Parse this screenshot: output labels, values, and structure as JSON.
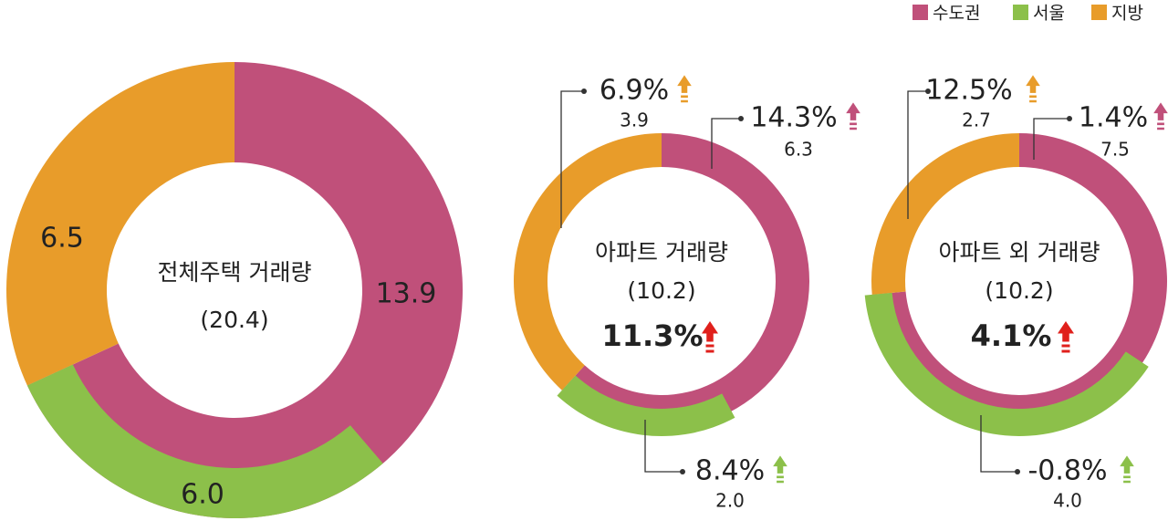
{
  "chart_data": [
    {
      "type": "donut",
      "title": "전체주택 거래량",
      "total": 20.4,
      "total_label": "(20.4)",
      "series": [
        {
          "name": "수도권",
          "color": "#c0507a",
          "value": 13.9,
          "value_label": "13.9"
        },
        {
          "name": "서울",
          "color": "#8cc04a",
          "value": 6.0,
          "value_label": "6.0"
        },
        {
          "name": "지방",
          "color": "#e89c2a",
          "value": 6.5,
          "value_label": "6.5"
        }
      ]
    },
    {
      "type": "donut",
      "title": "아파트 거래량",
      "total": 10.2,
      "total_label": "(10.2)",
      "change": 11.3,
      "change_label": "11.3%",
      "series": [
        {
          "name": "수도권",
          "color": "#c0507a",
          "value": 6.3,
          "value_label": "6.3",
          "change": 14.3,
          "change_label": "14.3%"
        },
        {
          "name": "서울",
          "color": "#8cc04a",
          "value": 2.0,
          "value_label": "2.0",
          "change": 8.4,
          "change_label": "8.4%"
        },
        {
          "name": "지방",
          "color": "#e89c2a",
          "value": 3.9,
          "value_label": "3.9",
          "change": 6.9,
          "change_label": "6.9%"
        }
      ]
    },
    {
      "type": "donut",
      "title": "아파트 외 거래량",
      "total": 10.2,
      "total_label": "(10.2)",
      "change": 4.1,
      "change_label": "4.1%",
      "series": [
        {
          "name": "수도권",
          "color": "#c0507a",
          "value": 7.5,
          "value_label": "7.5",
          "change": 1.4,
          "change_label": "1.4%"
        },
        {
          "name": "서울",
          "color": "#8cc04a",
          "value": 4.0,
          "value_label": "4.0",
          "change": -0.8,
          "change_label": "-0.8%"
        },
        {
          "name": "지방",
          "color": "#e89c2a",
          "value": 2.7,
          "value_label": "2.7",
          "change": 12.5,
          "change_label": "12.5%"
        }
      ]
    }
  ]
}
